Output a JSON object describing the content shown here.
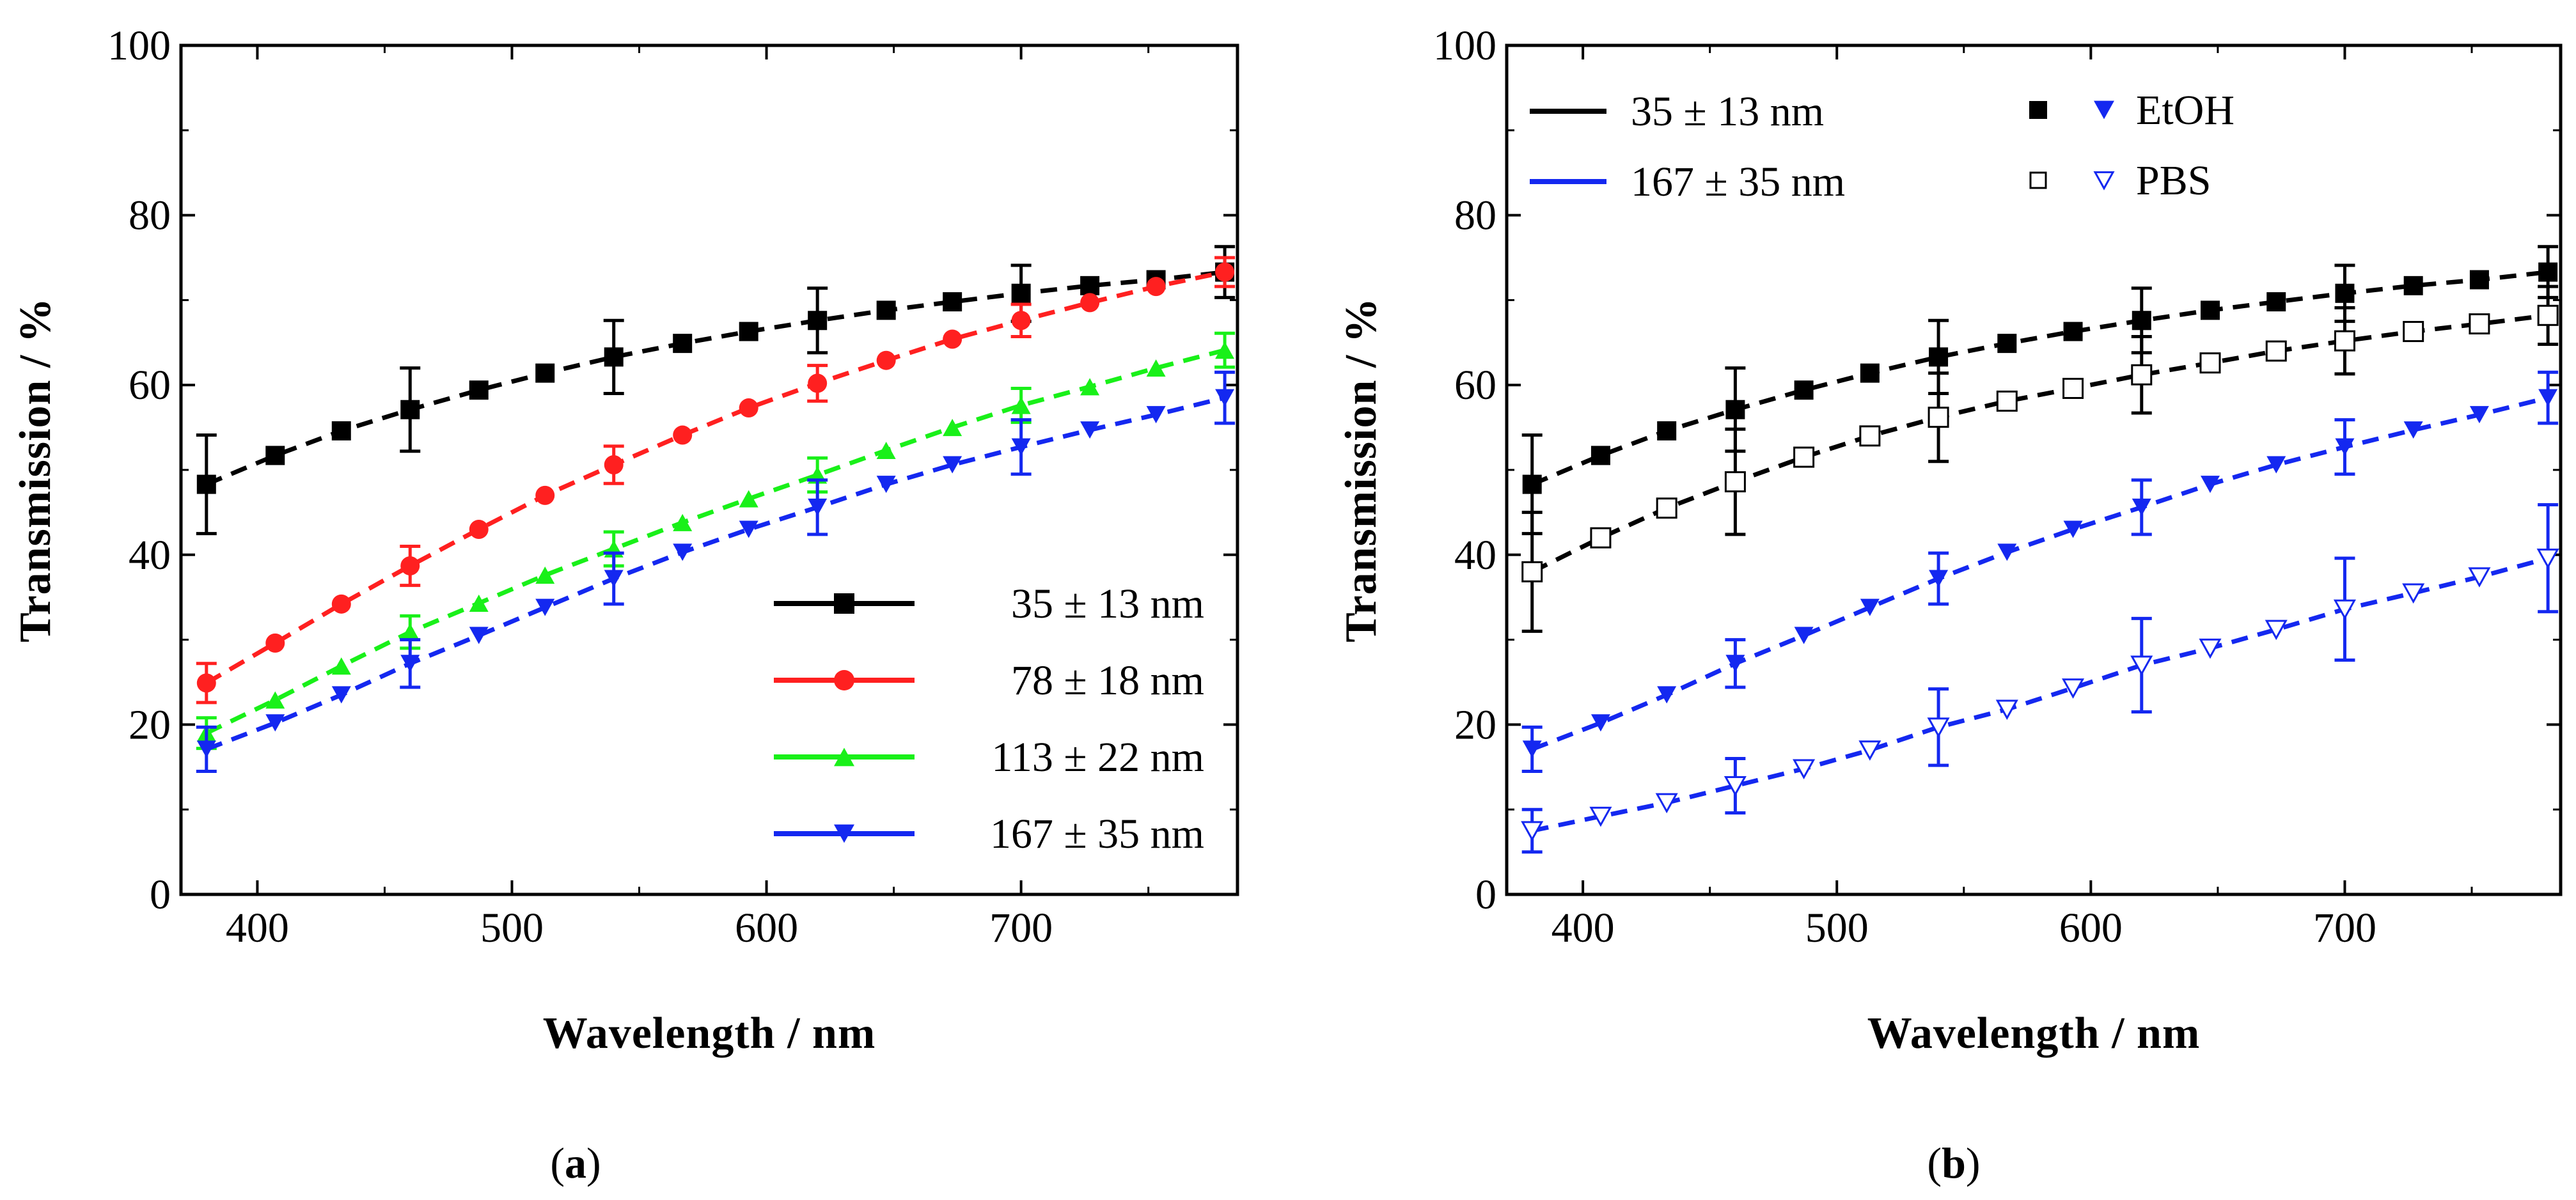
{
  "chart_data": [
    {
      "type": "line",
      "panel_label": "a",
      "caption": "(a)",
      "xlabel": "Wavelength  /  nm",
      "ylabel": "Transmission  /  %",
      "xlim": [
        370,
        785
      ],
      "ylim": [
        0,
        100
      ],
      "xticks": [
        "400",
        "500",
        "600",
        "700"
      ],
      "yticks": [
        "0",
        "20",
        "40",
        "60",
        "80",
        "100"
      ],
      "x": [
        380,
        407,
        433,
        460,
        487,
        513,
        540,
        567,
        593,
        620,
        647,
        673,
        700,
        727,
        753,
        780
      ],
      "errorbar_x": [
        380,
        460,
        540,
        620,
        700,
        780
      ],
      "legend_position": "bottom-right",
      "series": [
        {
          "name": "35 ± 13 nm",
          "color": "#000000",
          "marker": "square",
          "values": [
            48.3,
            51.7,
            54.6,
            57.1,
            59.4,
            61.4,
            63.3,
            64.9,
            66.3,
            67.6,
            68.8,
            69.8,
            70.8,
            71.7,
            72.4,
            73.3
          ],
          "errors": [
            5.8,
            4.9,
            4.3,
            3.8,
            3.3,
            3.0
          ]
        },
        {
          "name": "78 ± 18 nm",
          "color": "#ff2020",
          "marker": "circle",
          "values": [
            24.9,
            29.6,
            34.2,
            38.7,
            43.0,
            47.0,
            50.6,
            54.1,
            57.3,
            60.2,
            62.9,
            65.4,
            67.6,
            69.7,
            71.6,
            73.3
          ],
          "errors": [
            2.3,
            2.3,
            2.2,
            2.1,
            1.9,
            1.7
          ]
        },
        {
          "name": "113 ± 22 nm",
          "color": "#19f019",
          "marker": "triangle-up",
          "values": [
            19.0,
            22.9,
            26.9,
            30.9,
            34.3,
            37.6,
            40.7,
            43.8,
            46.6,
            49.4,
            52.3,
            55.0,
            57.6,
            59.8,
            62.0,
            64.1
          ],
          "errors": [
            1.8,
            1.9,
            2.0,
            2.0,
            2.0,
            2.0
          ]
        },
        {
          "name": "167 ± 35 nm",
          "color": "#1428f0",
          "marker": "triangle-down",
          "values": [
            17.1,
            20.2,
            23.5,
            27.2,
            30.5,
            33.8,
            37.2,
            40.3,
            43.0,
            45.6,
            48.3,
            50.6,
            52.7,
            54.7,
            56.5,
            58.5
          ],
          "errors": [
            2.6,
            2.8,
            3.0,
            3.2,
            3.2,
            3.0
          ]
        }
      ]
    },
    {
      "type": "line",
      "panel_label": "b",
      "caption": "(b)",
      "xlabel": "Wavelength  /  nm",
      "ylabel": "Transmission  /  %",
      "xlim": [
        370,
        785
      ],
      "ylim": [
        0,
        100
      ],
      "xticks": [
        "400",
        "500",
        "600",
        "700"
      ],
      "yticks": [
        "0",
        "20",
        "40",
        "60",
        "80",
        "100"
      ],
      "x": [
        380,
        407,
        433,
        460,
        487,
        513,
        540,
        567,
        593,
        620,
        647,
        673,
        700,
        727,
        753,
        780
      ],
      "errorbar_x": [
        380,
        460,
        540,
        620,
        700,
        780
      ],
      "legend_position": "top-left",
      "legend": {
        "lines": [
          {
            "label": "35 ± 13 nm",
            "color": "#000000"
          },
          {
            "label": "167 ± 35 nm",
            "color": "#1428f0"
          }
        ],
        "markers": [
          {
            "label": "EtOH",
            "symbols": [
              "square-filled",
              "triangle-down-filled"
            ]
          },
          {
            "label": "PBS",
            "symbols": [
              "square-open",
              "triangle-down-open"
            ]
          }
        ]
      },
      "series": [
        {
          "name": "35 ± 13 nm EtOH",
          "color": "#000000",
          "marker": "square",
          "filled": true,
          "values": [
            48.3,
            51.7,
            54.6,
            57.1,
            59.4,
            61.4,
            63.3,
            64.9,
            66.3,
            67.6,
            68.8,
            69.8,
            70.8,
            71.7,
            72.4,
            73.3
          ],
          "errors": [
            5.8,
            4.9,
            4.3,
            3.8,
            3.3,
            3.0
          ]
        },
        {
          "name": "35 ± 13 nm PBS",
          "color": "#000000",
          "marker": "square",
          "filled": false,
          "values": [
            38.0,
            42.0,
            45.5,
            48.6,
            51.5,
            54.0,
            56.2,
            58.1,
            59.6,
            61.2,
            62.6,
            64.0,
            65.2,
            66.3,
            67.2,
            68.2
          ],
          "errors": [
            7.0,
            6.2,
            5.2,
            4.5,
            3.9,
            3.4
          ]
        },
        {
          "name": "167 ± 35 nm EtOH",
          "color": "#1428f0",
          "marker": "triangle-down",
          "filled": true,
          "values": [
            17.1,
            20.2,
            23.5,
            27.2,
            30.5,
            33.8,
            37.2,
            40.3,
            43.0,
            45.6,
            48.3,
            50.6,
            52.7,
            54.7,
            56.5,
            58.5
          ],
          "errors": [
            2.6,
            2.8,
            3.0,
            3.2,
            3.2,
            3.0
          ]
        },
        {
          "name": "167 ± 35 nm PBS",
          "color": "#1428f0",
          "marker": "triangle-down",
          "filled": false,
          "values": [
            7.5,
            9.2,
            10.8,
            12.8,
            14.8,
            17.0,
            19.7,
            21.8,
            24.3,
            27.0,
            29.0,
            31.2,
            33.6,
            35.5,
            37.4,
            39.6
          ],
          "errors": [
            2.5,
            3.2,
            4.5,
            5.5,
            6.0,
            6.3
          ]
        }
      ]
    }
  ]
}
